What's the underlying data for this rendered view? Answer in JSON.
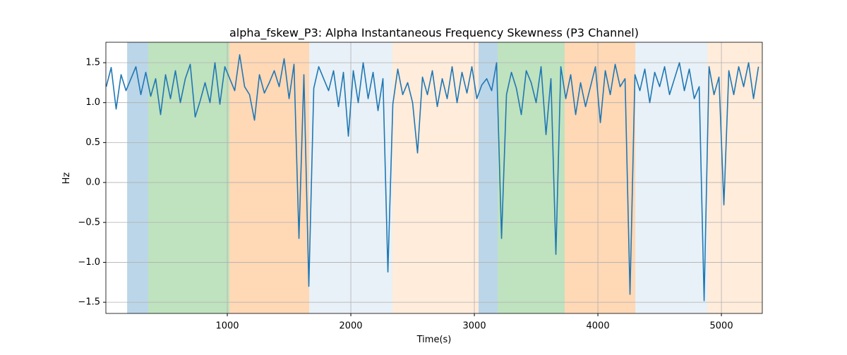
{
  "chart_data": {
    "type": "line",
    "title": "alpha_fskew_P3: Alpha Instantaneous Frequency Skewness (P3 Channel)",
    "xlabel": "Time(s)",
    "ylabel": "Hz",
    "xlim": [
      17,
      5331
    ],
    "ylim": [
      -1.64,
      1.756
    ],
    "xticks": [
      1000,
      2000,
      3000,
      4000,
      5000
    ],
    "yticks": [
      {
        "value": -1.5,
        "label": "−1.5"
      },
      {
        "value": -1,
        "label": "−1.0"
      },
      {
        "value": -0.5,
        "label": "−0.5"
      },
      {
        "value": 0,
        "label": "0.0"
      },
      0.5,
      {
        "value": 1,
        "label": "1.0"
      },
      1.5
    ],
    "grid": true,
    "spans": [
      {
        "start": 189,
        "end": 360,
        "color": "#1f77b4",
        "opacity": 0.3
      },
      {
        "start": 360,
        "end": 1017,
        "color": "#2ca02c",
        "opacity": 0.3
      },
      {
        "start": 1017,
        "end": 1663,
        "color": "#ff7f0e",
        "opacity": 0.3
      },
      {
        "start": 1663,
        "end": 2337,
        "color": "#1f77b4",
        "opacity": 0.1
      },
      {
        "start": 2337,
        "end": 3034,
        "color": "#ff7f0e",
        "opacity": 0.15
      },
      {
        "start": 3034,
        "end": 3189,
        "color": "#1f77b4",
        "opacity": 0.3
      },
      {
        "start": 3189,
        "end": 3731,
        "color": "#2ca02c",
        "opacity": 0.3
      },
      {
        "start": 3731,
        "end": 4303,
        "color": "#ff7f0e",
        "opacity": 0.3
      },
      {
        "start": 4303,
        "end": 4886,
        "color": "#1f77b4",
        "opacity": 0.1
      },
      {
        "start": 4886,
        "end": 5331,
        "color": "#ff7f0e",
        "opacity": 0.15
      }
    ],
    "x": [
      20,
      60,
      100,
      140,
      180,
      220,
      260,
      300,
      340,
      380,
      420,
      460,
      500,
      540,
      580,
      620,
      660,
      700,
      740,
      780,
      820,
      860,
      900,
      940,
      980,
      1020,
      1060,
      1100,
      1140,
      1180,
      1220,
      1260,
      1300,
      1340,
      1380,
      1420,
      1460,
      1500,
      1540,
      1580,
      1620,
      1660,
      1700,
      1740,
      1780,
      1820,
      1860,
      1900,
      1940,
      1980,
      2020,
      2060,
      2100,
      2140,
      2180,
      2220,
      2260,
      2300,
      2340,
      2380,
      2420,
      2460,
      2500,
      2540,
      2580,
      2620,
      2660,
      2700,
      2740,
      2780,
      2820,
      2860,
      2900,
      2940,
      2980,
      3020,
      3060,
      3100,
      3140,
      3180,
      3220,
      3260,
      3300,
      3340,
      3380,
      3420,
      3460,
      3500,
      3540,
      3580,
      3620,
      3660,
      3700,
      3740,
      3780,
      3820,
      3860,
      3900,
      3940,
      3980,
      4020,
      4060,
      4100,
      4140,
      4180,
      4220,
      4260,
      4300,
      4340,
      4380,
      4420,
      4460,
      4500,
      4540,
      4580,
      4620,
      4660,
      4700,
      4740,
      4780,
      4820,
      4860,
      4900,
      4940,
      4980,
      5020,
      5060,
      5100,
      5140,
      5180,
      5220,
      5260,
      5300
    ],
    "series": [
      {
        "name": "alpha_fskew_P3",
        "color": "#1f77b4",
        "values": [
          1.2,
          1.44,
          0.92,
          1.35,
          1.15,
          1.3,
          1.45,
          1.1,
          1.38,
          1.08,
          1.3,
          0.85,
          1.35,
          1.05,
          1.4,
          1.0,
          1.3,
          1.48,
          0.82,
          1.02,
          1.25,
          1.0,
          1.5,
          0.98,
          1.45,
          1.3,
          1.15,
          1.6,
          1.2,
          1.1,
          0.78,
          1.35,
          1.12,
          1.25,
          1.4,
          1.2,
          1.55,
          1.05,
          1.48,
          -0.7,
          1.35,
          -1.3,
          1.18,
          1.45,
          1.3,
          1.15,
          1.4,
          0.95,
          1.38,
          0.58,
          1.4,
          1.0,
          1.5,
          1.05,
          1.38,
          0.9,
          1.3,
          -1.12,
          0.98,
          1.42,
          1.1,
          1.25,
          1.0,
          0.37,
          1.32,
          1.1,
          1.4,
          0.95,
          1.3,
          1.05,
          1.45,
          1.0,
          1.38,
          1.12,
          1.45,
          1.05,
          1.22,
          1.3,
          1.15,
          1.5,
          -0.7,
          1.1,
          1.38,
          1.18,
          0.85,
          1.4,
          1.25,
          1.0,
          1.45,
          0.6,
          1.3,
          -0.9,
          1.45,
          1.05,
          1.35,
          0.85,
          1.25,
          0.95,
          1.2,
          1.45,
          0.75,
          1.4,
          1.1,
          1.48,
          1.2,
          1.3,
          -1.4,
          1.35,
          1.15,
          1.42,
          1.0,
          1.38,
          1.2,
          1.45,
          1.1,
          1.3,
          1.5,
          1.15,
          1.42,
          1.05,
          1.2,
          -1.48,
          1.45,
          1.1,
          1.32,
          -0.28,
          1.4,
          1.1,
          1.45,
          1.2,
          1.5,
          1.05,
          1.45
        ]
      }
    ]
  }
}
